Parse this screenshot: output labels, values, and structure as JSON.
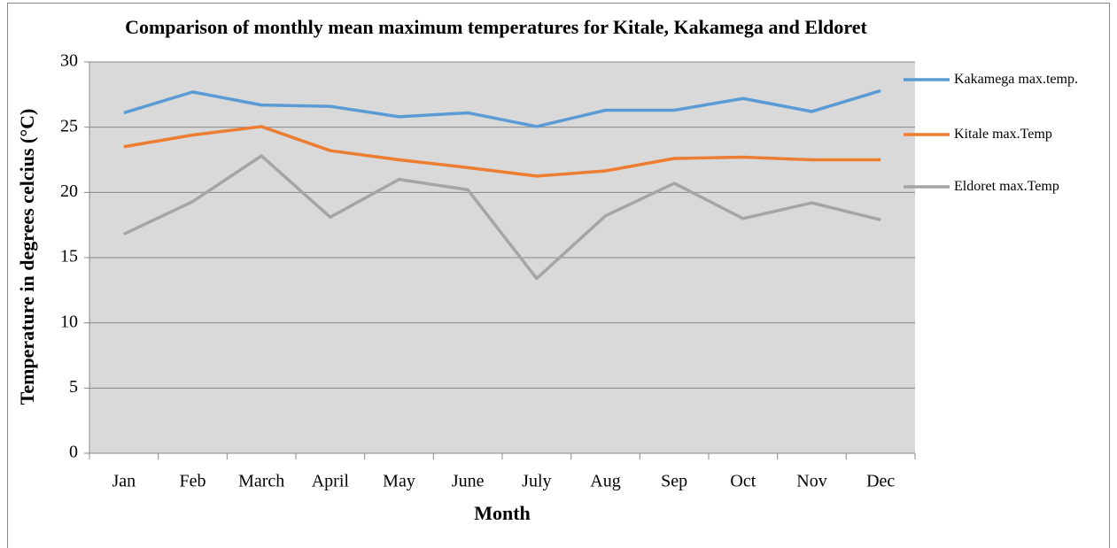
{
  "chart_data": {
    "type": "line",
    "title": "Comparison of monthly mean maximum temperatures for Kitale, Kakamega and Eldoret",
    "x_label": "Month",
    "y_label": "Temperature in degrees celcius (°C)",
    "categories": [
      "Jan",
      "Feb",
      "March",
      "April",
      "May",
      "June",
      "July",
      "Aug",
      "Sep",
      "Oct",
      "Nov",
      "Dec"
    ],
    "series": [
      {
        "name": "Kakamega max.temp.",
        "color": "#5b9bd5",
        "values": [
          26.1,
          27.7,
          26.7,
          26.6,
          25.8,
          26.1,
          25.05,
          26.3,
          26.3,
          27.2,
          26.2,
          27.8
        ]
      },
      {
        "name": "Kitale max.Temp",
        "color": "#ed7d31",
        "values": [
          23.5,
          24.4,
          25.05,
          23.2,
          22.5,
          21.9,
          21.25,
          21.65,
          22.6,
          22.7,
          22.5,
          22.5
        ]
      },
      {
        "name": "Eldoret max.Temp",
        "color": "#a5a5a5",
        "values": [
          16.8,
          19.3,
          22.8,
          18.1,
          21.0,
          20.2,
          13.4,
          18.2,
          20.7,
          18.0,
          19.2,
          17.9
        ]
      }
    ],
    "ylim": [
      0,
      30
    ],
    "yticks": [
      0,
      5,
      10,
      15,
      20,
      25,
      30
    ],
    "grid": true,
    "legend": "right"
  }
}
